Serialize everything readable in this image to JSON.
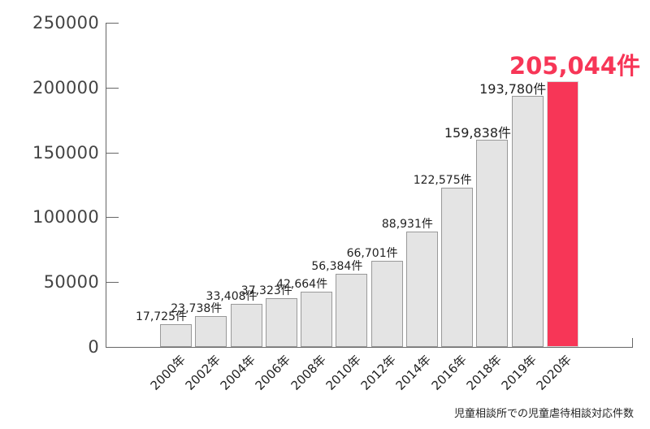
{
  "chart_data": {
    "type": "bar",
    "title": "児童相談所での児童虐待相談対応件数",
    "xlabel": "",
    "ylabel": "",
    "ylim": [
      0,
      250000
    ],
    "yticks": [
      "0",
      "50000",
      "100000",
      "150000",
      "200000",
      "250000"
    ],
    "grid": false,
    "legend": null,
    "categories": [
      "2000年",
      "2002年",
      "2004年",
      "2006年",
      "2008年",
      "2010年",
      "2012年",
      "2014年",
      "2016年",
      "2018年",
      "2019年",
      "2020年"
    ],
    "values": [
      17725,
      23738,
      33408,
      37323,
      42664,
      56384,
      66701,
      88931,
      122575,
      159838,
      193780,
      205044
    ],
    "data_labels": [
      "17,725件",
      "23,738件",
      "33,408件",
      "37,323件",
      "42,664件",
      "56,384件",
      "66,701件",
      "88,931件",
      "122,575件",
      "159,838件",
      "193,780件",
      "205,044件"
    ],
    "highlight_index": 11,
    "colors": {
      "bar": "#e4e4e4",
      "bar_border": "#999999",
      "highlight": "#f73657",
      "axis": "#666666"
    }
  },
  "caption": "児童相談所での児童虐待相談対応件数"
}
